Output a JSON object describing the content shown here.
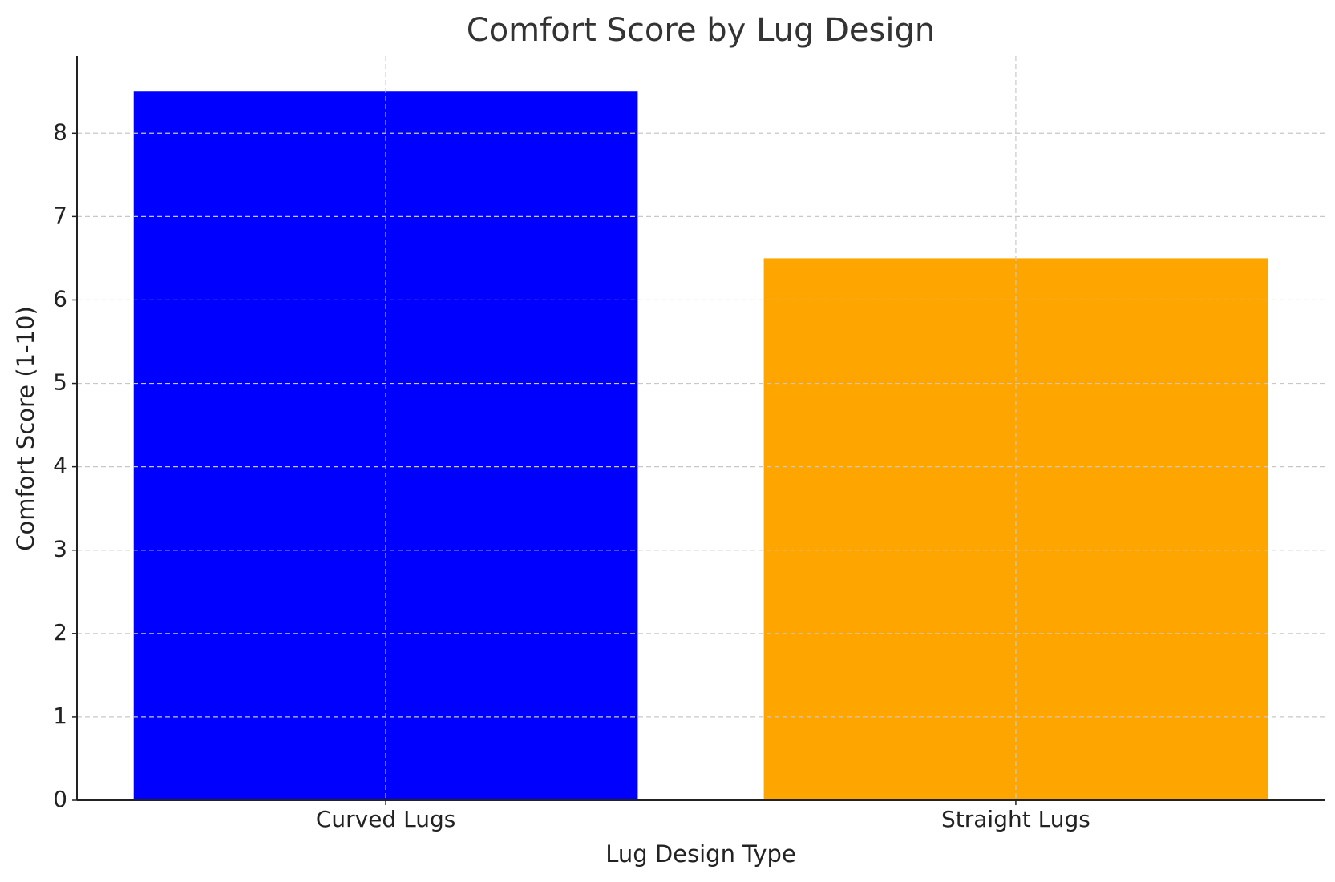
{
  "chart_data": {
    "type": "bar",
    "title": "Comfort Score by Lug Design",
    "x_label": "Lug Design Type",
    "y_label": "Comfort Score (1-10)",
    "categories": [
      "Curved Lugs",
      "Straight Lugs"
    ],
    "values": [
      8.5,
      6.5
    ],
    "colors": [
      "#0000ff",
      "#ffa500"
    ],
    "ylim": [
      0,
      8.925
    ],
    "yticks": [
      0,
      1,
      2,
      3,
      4,
      5,
      6,
      7,
      8
    ],
    "grid": true
  }
}
